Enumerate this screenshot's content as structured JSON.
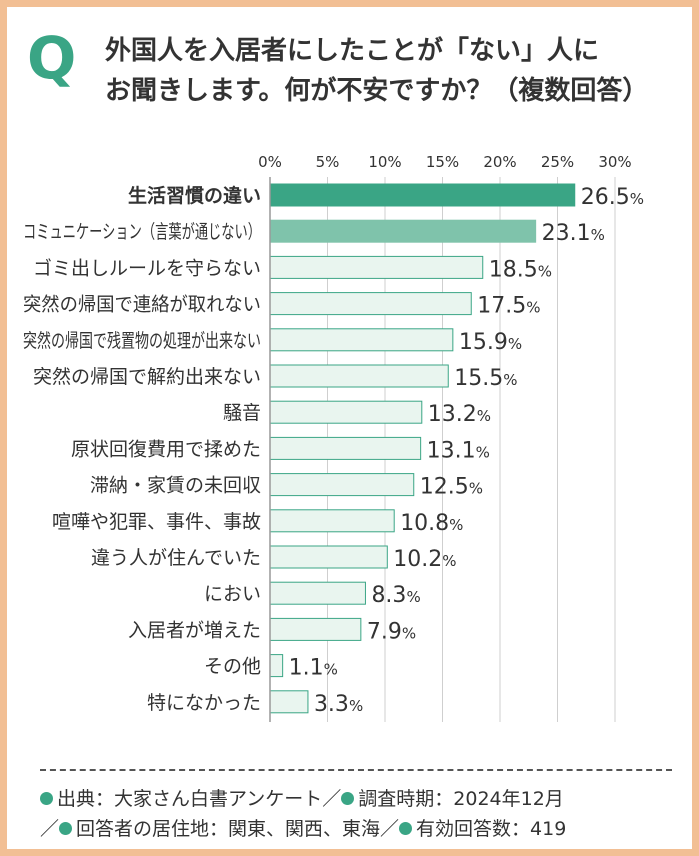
{
  "title": {
    "mark": "Q",
    "line1": "外国人を入居者にしたことが「ない」人に",
    "line2": "お聞きします。何が不安ですか？（複数回答）"
  },
  "colors": {
    "accent": "#3aa585",
    "second": "#7fc3ab",
    "bar_fill": "#e9f5ef",
    "bar_stroke": "#3aa585"
  },
  "chart_data": {
    "type": "bar",
    "orientation": "horizontal",
    "categories": [
      "生活習慣の違い",
      "コミュニケーション（言葉が通じない）",
      "ゴミ出しルールを守らない",
      "突然の帰国で連絡が取れない",
      "突然の帰国で残置物の処理が出来ない",
      "突然の帰国で解約出来ない",
      "騒音",
      "原状回復費用で揉めた",
      "滞納・家賃の未回収",
      "喧嘩や犯罪、事件、事故",
      "違う人が住んでいた",
      "におい",
      "入居者が増えた",
      "その他",
      "特になかった"
    ],
    "values": [
      26.5,
      23.1,
      18.5,
      17.5,
      15.9,
      15.5,
      13.2,
      13.1,
      12.5,
      10.8,
      10.2,
      8.3,
      7.9,
      1.1,
      3.3
    ],
    "value_labels": [
      "26.5",
      "23.1",
      "18.5",
      "17.5",
      "15.9",
      "15.5",
      "13.2",
      "13.1",
      "12.5",
      "10.8",
      "10.2",
      "8.3",
      "7.9",
      "1.1",
      "3.3"
    ],
    "value_suffix": "%",
    "xticks": [
      "0%",
      "5%",
      "10%",
      "15%",
      "20%",
      "25%",
      "30%"
    ],
    "xlim": [
      0,
      30
    ],
    "grid": true,
    "legend": "none"
  },
  "footer": {
    "source_label": "出典：大家さん白書アンケート",
    "period_label": "調査時期：2024年12月",
    "residence_label": "回答者の居住地：関東、関西、東海",
    "count_label": "有効回答数：419",
    "separator": "／"
  }
}
